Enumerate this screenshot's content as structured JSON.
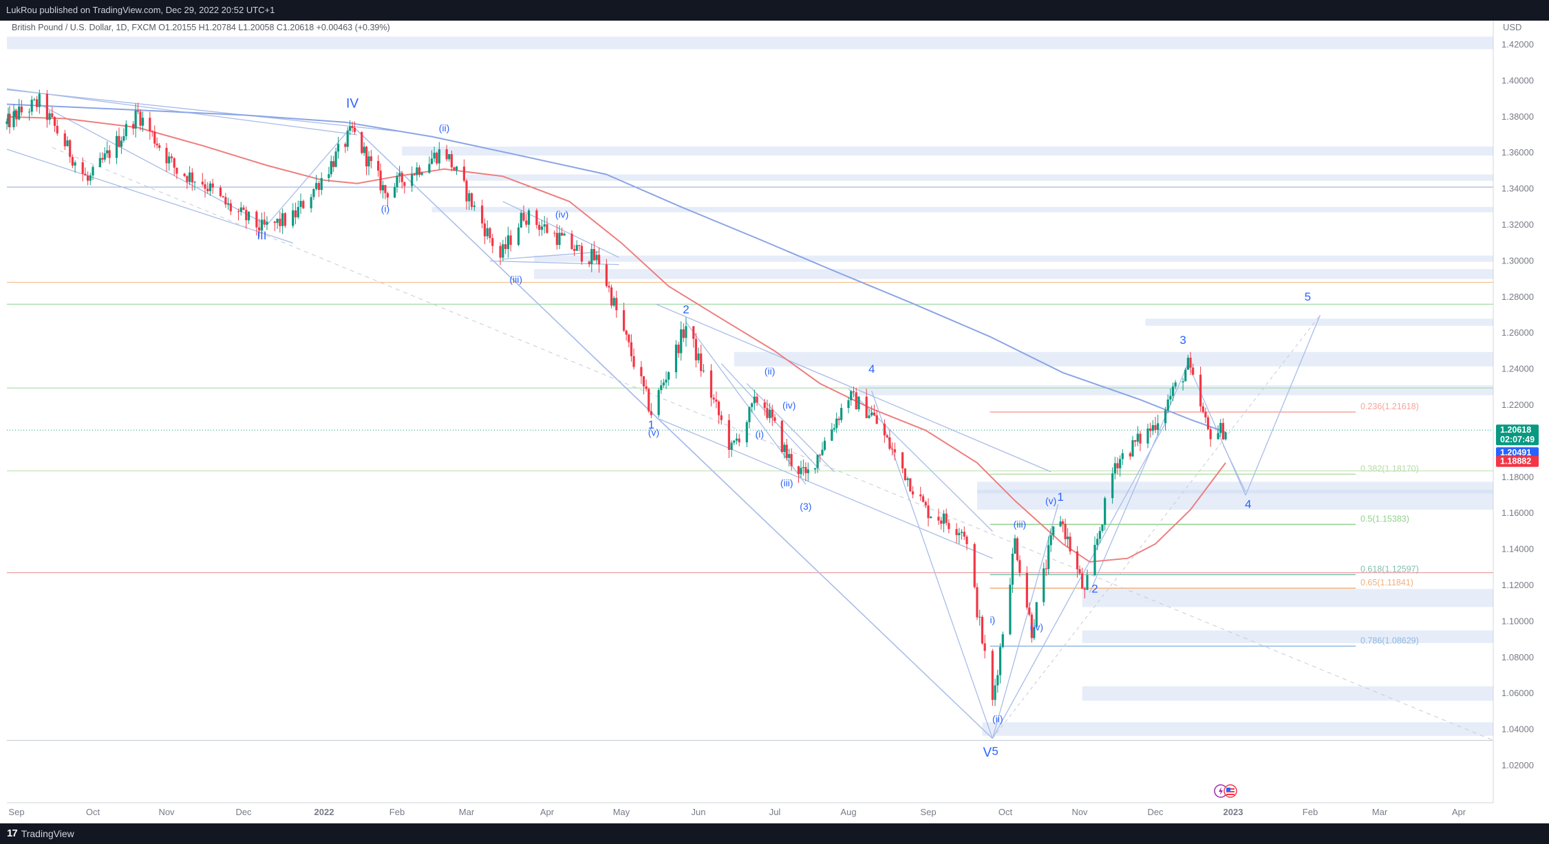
{
  "header": {
    "published_text": "LukRou published on TradingView.com, Dec 29, 2022 20:52 UTC+1"
  },
  "footer": {
    "brand": "TradingView",
    "logo_icon": "tradingview-logo-icon"
  },
  "chart_data": {
    "type": "candlestick",
    "legend": {
      "symbol": "British Pound / U.S. Dollar, 1D, FXCM",
      "open": "O1.20155",
      "high": "H1.20784",
      "low": "L1.20058",
      "close": "C1.20618",
      "change": "+0.00463 (+0.39%)"
    },
    "currency": "USD",
    "ylim": [
      1.005,
      1.43
    ],
    "y_ticks": [
      "1.42000",
      "1.40000",
      "1.38000",
      "1.36000",
      "1.34000",
      "1.32000",
      "1.30000",
      "1.28000",
      "1.26000",
      "1.24000",
      "1.22000",
      "1.20000",
      "1.18000",
      "1.16000",
      "1.14000",
      "1.12000",
      "1.10000",
      "1.08000",
      "1.06000",
      "1.04000",
      "1.02000"
    ],
    "x_ticks": [
      "Sep",
      "Oct",
      "Nov",
      "Dec",
      "2022",
      "Feb",
      "Mar",
      "Apr",
      "May",
      "Jun",
      "Jul",
      "Aug",
      "Sep",
      "Oct",
      "Nov",
      "Dec",
      "2023",
      "Feb",
      "Mar",
      "Apr"
    ],
    "price_tags": [
      {
        "label": "1.20618",
        "sub": "02:07:49",
        "value": 1.20618,
        "color": "#089981"
      },
      {
        "label": "1.20491",
        "value": 1.20491,
        "color": "#2962ff"
      },
      {
        "label": "1.18882",
        "value": 1.18882,
        "color": "#f23645"
      }
    ],
    "fib_levels": [
      {
        "label": "0.236(1.21618)",
        "value": 1.21618,
        "color": "#f7a399"
      },
      {
        "label": "0.382(1.18170)",
        "value": 1.1817,
        "color": "#b6dba8"
      },
      {
        "label": "0.5(1.15383)",
        "value": 1.15383,
        "color": "#8fd18a"
      },
      {
        "label": "0.618(1.12597)",
        "value": 1.12597,
        "color": "#7fbfb0"
      },
      {
        "label": "0.65(1.11841)",
        "value": 1.11841,
        "color": "#f0b07a"
      },
      {
        "label": "0.786(1.08629)",
        "value": 1.08629,
        "color": "#90b8e0"
      }
    ],
    "wave_labels": [
      {
        "text": "IV",
        "date": "2022-01-13",
        "price": 1.385,
        "size": 19
      },
      {
        "text": "III",
        "date": "2021-12-08",
        "price": 1.312,
        "size": 17
      },
      {
        "text": "(i)",
        "date": "2022-01-27",
        "price": 1.327,
        "size": 14
      },
      {
        "text": "(ii)",
        "date": "2022-02-20",
        "price": 1.372,
        "size": 14
      },
      {
        "text": "(iii)",
        "date": "2022-03-20",
        "price": 1.288,
        "size": 14
      },
      {
        "text": "(iv)",
        "date": "2022-04-07",
        "price": 1.324,
        "size": 14
      },
      {
        "text": "1",
        "date": "2022-05-13",
        "price": 1.207,
        "size": 17
      },
      {
        "text": "(v)",
        "date": "2022-05-14",
        "price": 1.203,
        "size": 14
      },
      {
        "text": "2",
        "date": "2022-05-27",
        "price": 1.271,
        "size": 17
      },
      {
        "text": "(ii)",
        "date": "2022-06-29",
        "price": 1.237,
        "size": 14
      },
      {
        "text": "(i)",
        "date": "2022-06-25",
        "price": 1.202,
        "size": 14
      },
      {
        "text": "(iv)",
        "date": "2022-07-07",
        "price": 1.218,
        "size": 14
      },
      {
        "text": "(iii)",
        "date": "2022-07-06",
        "price": 1.175,
        "size": 14
      },
      {
        "text": "(3)",
        "date": "2022-07-14",
        "price": 1.162,
        "size": 14
      },
      {
        "text": "4",
        "date": "2022-08-10",
        "price": 1.238,
        "size": 17
      },
      {
        "text": "(v)",
        "date": "2022-10-20",
        "price": 1.165,
        "size": 14
      },
      {
        "text": "1",
        "date": "2022-10-24",
        "price": 1.167,
        "size": 17
      },
      {
        "text": "(iii)",
        "date": "2022-10-07",
        "price": 1.152,
        "size": 14
      },
      {
        "text": "i)",
        "date": "2022-09-26",
        "price": 1.099,
        "size": 14
      },
      {
        "text": "(iv)",
        "date": "2022-10-14",
        "price": 1.095,
        "size": 14
      },
      {
        "text": "(ii)",
        "date": "2022-09-28",
        "price": 1.044,
        "size": 14
      },
      {
        "text": "V",
        "date": "2022-09-24",
        "price": 1.025,
        "size": 19
      },
      {
        "text": "5",
        "date": "2022-09-27",
        "price": 1.026,
        "size": 17
      },
      {
        "text": "2",
        "date": "2022-11-07",
        "price": 1.116,
        "size": 17
      },
      {
        "text": "3",
        "date": "2022-12-12",
        "price": 1.254,
        "size": 17
      },
      {
        "text": "4",
        "date": "2023-01-07",
        "price": 1.163,
        "size": 17
      },
      {
        "text": "5",
        "date": "2023-01-31",
        "price": 1.278,
        "size": 17
      }
    ],
    "candles_date_range": [
      "2021-08-25",
      "2022-12-29"
    ]
  }
}
